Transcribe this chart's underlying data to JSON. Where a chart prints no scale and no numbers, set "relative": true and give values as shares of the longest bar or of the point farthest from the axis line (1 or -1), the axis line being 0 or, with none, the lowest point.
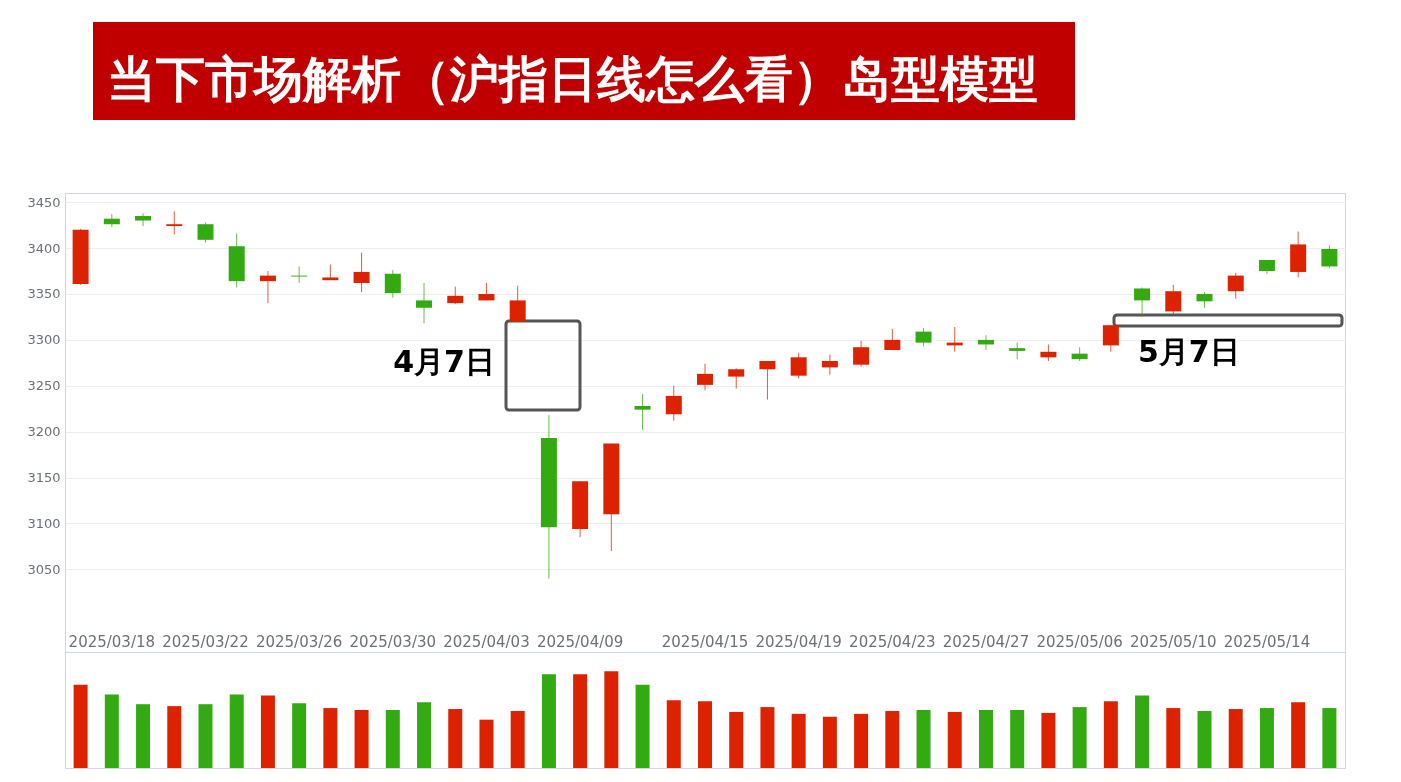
{
  "chart_data": [
    {
      "type": "candlestick",
      "title": "当下市场解析（沪指日线怎么看）岛型模型",
      "categories": [
        null,
        "2025/03/18",
        null,
        null,
        "2025/03/22",
        null,
        null,
        "2025/03/26",
        null,
        null,
        "2025/03/30",
        null,
        null,
        "2025/04/03",
        null,
        null,
        "2025/04/09",
        null,
        null,
        null,
        "2025/04/15",
        null,
        null,
        "2025/04/19",
        null,
        null,
        "2025/04/23",
        null,
        null,
        "2025/04/27",
        null,
        null,
        "2025/05/06",
        null,
        null,
        "2025/05/10",
        null,
        null,
        "2025/05/14",
        null,
        null
      ],
      "ohlc": [
        [
          3361,
          3421,
          3360,
          3420
        ],
        [
          3432,
          3437,
          3423,
          3426
        ],
        [
          3435,
          3438,
          3424,
          3430
        ],
        [
          3424,
          3440,
          3415,
          3426
        ],
        [
          3426,
          3428,
          3406,
          3409
        ],
        [
          3402,
          3416,
          3357,
          3364
        ],
        [
          3364,
          3375,
          3340,
          3370
        ],
        [
          3370,
          3380,
          3362,
          3369
        ],
        [
          3365,
          3382,
          3365,
          3368
        ],
        [
          3362,
          3395,
          3352,
          3374
        ],
        [
          3372,
          3376,
          3346,
          3351
        ],
        [
          3343,
          3362,
          3318,
          3335
        ],
        [
          3340,
          3358,
          3339,
          3348
        ],
        [
          3343,
          3362,
          3343,
          3350
        ],
        [
          3320,
          3359,
          3320,
          3343
        ],
        [
          3193,
          3218,
          3040,
          3096
        ],
        [
          3094,
          3146,
          3085,
          3146
        ],
        [
          3110,
          3187,
          3070,
          3187
        ],
        [
          3228,
          3241,
          3202,
          3224
        ],
        [
          3219,
          3250,
          3212,
          3239
        ],
        [
          3251,
          3274,
          3245,
          3263
        ],
        [
          3260,
          3269,
          3247,
          3268
        ],
        [
          3268,
          3277,
          3235,
          3277
        ],
        [
          3261,
          3286,
          3258,
          3281
        ],
        [
          3270,
          3284,
          3262,
          3277
        ],
        [
          3273,
          3299,
          3271,
          3292
        ],
        [
          3289,
          3312,
          3289,
          3300
        ],
        [
          3309,
          3313,
          3293,
          3297
        ],
        [
          3294,
          3314,
          3287,
          3297
        ],
        [
          3300,
          3305,
          3289,
          3295
        ],
        [
          3291,
          3297,
          3279,
          3288
        ],
        [
          3281,
          3295,
          3277,
          3287
        ],
        [
          3285,
          3292,
          3277,
          3279
        ],
        [
          3294,
          3316,
          3287,
          3316
        ],
        [
          3356,
          3357,
          3325,
          3343
        ],
        [
          3331,
          3360,
          3328,
          3353
        ],
        [
          3350,
          3352,
          3335,
          3342
        ],
        [
          3353,
          3373,
          3345,
          3370
        ],
        [
          3387,
          3387,
          3372,
          3375
        ],
        [
          3374,
          3418,
          3368,
          3404
        ],
        [
          3399,
          3403,
          3378,
          3380
        ]
      ],
      "colors": [
        "#dd2200",
        "#33aa11",
        "#33aa11",
        "#dd2200",
        "#33aa11",
        "#33aa11",
        "#dd2200",
        "#33aa11",
        "#dd2200",
        "#dd2200",
        "#33aa11",
        "#33aa11",
        "#dd2200",
        "#dd2200",
        "#dd2200",
        "#33aa11",
        "#dd2200",
        "#dd2200",
        "#33aa11",
        "#dd2200",
        "#dd2200",
        "#dd2200",
        "#dd2200",
        "#dd2200",
        "#dd2200",
        "#dd2200",
        "#dd2200",
        "#33aa11",
        "#dd2200",
        "#33aa11",
        "#33aa11",
        "#dd2200",
        "#33aa11",
        "#dd2200",
        "#33aa11",
        "#dd2200",
        "#33aa11",
        "#dd2200",
        "#33aa11",
        "#dd2200",
        "#33aa11"
      ],
      "ylim": [
        2960,
        3460
      ],
      "yticks": [
        3050,
        3100,
        3150,
        3200,
        3250,
        3300,
        3350,
        3400,
        3450
      ],
      "grid": "y",
      "annotations": [
        "4月7日",
        "5月7日"
      ]
    },
    {
      "type": "bar",
      "relative": true,
      "tick_labels": false,
      "categories": [
        null,
        "2025/03/18",
        null,
        null,
        "2025/03/22",
        null,
        null,
        "2025/03/26",
        null,
        null,
        "2025/03/30",
        null,
        null,
        "2025/04/03",
        null,
        null,
        "2025/04/09",
        null,
        null,
        null,
        "2025/04/15",
        null,
        null,
        "2025/04/19",
        null,
        null,
        "2025/04/23",
        null,
        null,
        "2025/04/27",
        null,
        null,
        "2025/05/06",
        null,
        null,
        "2025/05/10",
        null,
        null,
        "2025/05/14",
        null,
        null
      ],
      "values": [
        0.86,
        0.76,
        0.66,
        0.64,
        0.66,
        0.76,
        0.75,
        0.67,
        0.62,
        0.6,
        0.6,
        0.68,
        0.61,
        0.5,
        0.59,
        0.97,
        0.97,
        1,
        0.86,
        0.7,
        0.69,
        0.58,
        0.63,
        0.56,
        0.53,
        0.56,
        0.59,
        0.6,
        0.58,
        0.6,
        0.6,
        0.57,
        0.63,
        0.69,
        0.75,
        0.62,
        0.59,
        0.61,
        0.62,
        0.68,
        0.62
      ],
      "colors": [
        "#dd2200",
        "#33aa11",
        "#33aa11",
        "#dd2200",
        "#33aa11",
        "#33aa11",
        "#dd2200",
        "#33aa11",
        "#dd2200",
        "#dd2200",
        "#33aa11",
        "#33aa11",
        "#dd2200",
        "#dd2200",
        "#dd2200",
        "#33aa11",
        "#dd2200",
        "#dd2200",
        "#33aa11",
        "#dd2200",
        "#dd2200",
        "#dd2200",
        "#dd2200",
        "#dd2200",
        "#dd2200",
        "#dd2200",
        "#dd2200",
        "#33aa11",
        "#dd2200",
        "#33aa11",
        "#33aa11",
        "#dd2200",
        "#33aa11",
        "#dd2200",
        "#33aa11",
        "#dd2200",
        "#33aa11",
        "#dd2200",
        "#33aa11",
        "#dd2200",
        "#33aa11"
      ]
    }
  ]
}
